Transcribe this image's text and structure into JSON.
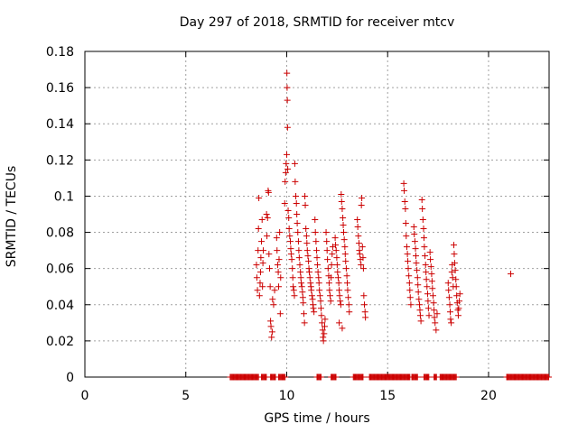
{
  "chart_data": {
    "type": "scatter",
    "title": "Day 297 of 2018, SRMTID for receiver mtcv",
    "xlabel": "GPS time / hours",
    "ylabel": "SRMTID / TECUs",
    "xlim": [
      0,
      23
    ],
    "ylim": [
      0,
      0.18
    ],
    "xticks": [
      0,
      5,
      10,
      15,
      20
    ],
    "yticks": [
      0,
      0.02,
      0.04,
      0.06,
      0.08,
      0.1,
      0.12,
      0.14,
      0.16,
      0.18
    ],
    "xtick_labels": [
      "0",
      "5",
      "10",
      "15",
      "20"
    ],
    "ytick_labels": [
      "0",
      "0.02",
      "0.04",
      "0.06",
      "0.08",
      "0.1",
      "0.12",
      "0.14",
      "0.16",
      "0.18"
    ],
    "grid": true,
    "marker": "+",
    "series": [
      {
        "color": "#cc0000",
        "points": [
          [
            8.5,
            0.062
          ],
          [
            8.52,
            0.055
          ],
          [
            8.55,
            0.048
          ],
          [
            8.58,
            0.07
          ],
          [
            8.6,
            0.082
          ],
          [
            8.62,
            0.099
          ],
          [
            8.65,
            0.045
          ],
          [
            8.68,
            0.052
          ],
          [
            8.7,
            0.058
          ],
          [
            8.72,
            0.066
          ],
          [
            8.75,
            0.075
          ],
          [
            8.78,
            0.087
          ],
          [
            8.8,
            0.05
          ],
          [
            8.82,
            0.063
          ],
          [
            8.84,
            0.07
          ],
          [
            9.0,
            0.09
          ],
          [
            9.02,
            0.078
          ],
          [
            9.05,
            0.088
          ],
          [
            9.08,
            0.103
          ],
          [
            9.1,
            0.102
          ],
          [
            9.12,
            0.068
          ],
          [
            9.15,
            0.06
          ],
          [
            9.18,
            0.05
          ],
          [
            9.2,
            0.031
          ],
          [
            9.22,
            0.028
          ],
          [
            9.25,
            0.022
          ],
          [
            9.28,
            0.025
          ],
          [
            9.3,
            0.043
          ],
          [
            9.35,
            0.04
          ],
          [
            9.4,
            0.048
          ],
          [
            9.5,
            0.077
          ],
          [
            9.52,
            0.07
          ],
          [
            9.55,
            0.062
          ],
          [
            9.58,
            0.058
          ],
          [
            9.6,
            0.05
          ],
          [
            9.62,
            0.065
          ],
          [
            9.65,
            0.08
          ],
          [
            9.68,
            0.035
          ],
          [
            9.7,
            0.055
          ],
          [
            9.9,
            0.096
          ],
          [
            9.92,
            0.108
          ],
          [
            9.95,
            0.113
          ],
          [
            9.97,
            0.118
          ],
          [
            10.0,
            0.123
          ],
          [
            10.01,
            0.168
          ],
          [
            10.02,
            0.16
          ],
          [
            10.03,
            0.153
          ],
          [
            10.04,
            0.138
          ],
          [
            10.05,
            0.115
          ],
          [
            10.07,
            0.092
          ],
          [
            10.1,
            0.088
          ],
          [
            10.12,
            0.082
          ],
          [
            10.15,
            0.078
          ],
          [
            10.18,
            0.075
          ],
          [
            10.2,
            0.071
          ],
          [
            10.22,
            0.068
          ],
          [
            10.25,
            0.065
          ],
          [
            10.28,
            0.06
          ],
          [
            10.3,
            0.055
          ],
          [
            10.32,
            0.05
          ],
          [
            10.35,
            0.048
          ],
          [
            10.38,
            0.045
          ],
          [
            10.4,
            0.118
          ],
          [
            10.42,
            0.108
          ],
          [
            10.45,
            0.1
          ],
          [
            10.48,
            0.096
          ],
          [
            10.5,
            0.09
          ],
          [
            10.52,
            0.085
          ],
          [
            10.55,
            0.08
          ],
          [
            10.58,
            0.075
          ],
          [
            10.6,
            0.07
          ],
          [
            10.62,
            0.066
          ],
          [
            10.65,
            0.062
          ],
          [
            10.68,
            0.058
          ],
          [
            10.7,
            0.055
          ],
          [
            10.72,
            0.052
          ],
          [
            10.75,
            0.05
          ],
          [
            10.78,
            0.047
          ],
          [
            10.8,
            0.044
          ],
          [
            10.82,
            0.041
          ],
          [
            10.85,
            0.035
          ],
          [
            10.88,
            0.03
          ],
          [
            10.9,
            0.1
          ],
          [
            10.92,
            0.095
          ],
          [
            10.95,
            0.082
          ],
          [
            10.98,
            0.078
          ],
          [
            11.0,
            0.074
          ],
          [
            11.02,
            0.07
          ],
          [
            11.05,
            0.067
          ],
          [
            11.08,
            0.064
          ],
          [
            11.1,
            0.06
          ],
          [
            11.12,
            0.058
          ],
          [
            11.15,
            0.055
          ],
          [
            11.18,
            0.052
          ],
          [
            11.2,
            0.05
          ],
          [
            11.22,
            0.048
          ],
          [
            11.25,
            0.045
          ],
          [
            11.28,
            0.043
          ],
          [
            11.3,
            0.04
          ],
          [
            11.32,
            0.038
          ],
          [
            11.35,
            0.036
          ],
          [
            11.4,
            0.087
          ],
          [
            11.42,
            0.08
          ],
          [
            11.45,
            0.075
          ],
          [
            11.48,
            0.07
          ],
          [
            11.5,
            0.066
          ],
          [
            11.52,
            0.062
          ],
          [
            11.55,
            0.058
          ],
          [
            11.58,
            0.055
          ],
          [
            11.6,
            0.052
          ],
          [
            11.62,
            0.048
          ],
          [
            11.65,
            0.045
          ],
          [
            11.68,
            0.042
          ],
          [
            11.7,
            0.038
          ],
          [
            11.72,
            0.034
          ],
          [
            11.75,
            0.03
          ],
          [
            11.78,
            0.026
          ],
          [
            11.8,
            0.022
          ],
          [
            11.82,
            0.02
          ],
          [
            11.85,
            0.024
          ],
          [
            11.88,
            0.028
          ],
          [
            11.9,
            0.032
          ],
          [
            11.95,
            0.08
          ],
          [
            11.98,
            0.075
          ],
          [
            12.0,
            0.07
          ],
          [
            12.02,
            0.065
          ],
          [
            12.05,
            0.06
          ],
          [
            12.08,
            0.056
          ],
          [
            12.1,
            0.052
          ],
          [
            12.12,
            0.048
          ],
          [
            12.15,
            0.045
          ],
          [
            12.18,
            0.042
          ],
          [
            12.2,
            0.055
          ],
          [
            12.22,
            0.062
          ],
          [
            12.25,
            0.068
          ],
          [
            12.28,
            0.072
          ],
          [
            12.4,
            0.077
          ],
          [
            12.42,
            0.073
          ],
          [
            12.45,
            0.07
          ],
          [
            12.48,
            0.066
          ],
          [
            12.5,
            0.062
          ],
          [
            12.52,
            0.058
          ],
          [
            12.55,
            0.055
          ],
          [
            12.58,
            0.052
          ],
          [
            12.6,
            0.048
          ],
          [
            12.62,
            0.045
          ],
          [
            12.65,
            0.042
          ],
          [
            12.68,
            0.04
          ],
          [
            12.7,
            0.101
          ],
          [
            12.72,
            0.097
          ],
          [
            12.75,
            0.093
          ],
          [
            12.78,
            0.088
          ],
          [
            12.8,
            0.084
          ],
          [
            12.82,
            0.08
          ],
          [
            12.85,
            0.076
          ],
          [
            12.88,
            0.072
          ],
          [
            12.9,
            0.068
          ],
          [
            12.92,
            0.064
          ],
          [
            12.95,
            0.06
          ],
          [
            12.98,
            0.056
          ],
          [
            13.0,
            0.052
          ],
          [
            13.02,
            0.048
          ],
          [
            13.05,
            0.044
          ],
          [
            13.08,
            0.04
          ],
          [
            13.1,
            0.036
          ],
          [
            12.75,
            0.027
          ],
          [
            12.6,
            0.03
          ],
          [
            13.5,
            0.087
          ],
          [
            13.52,
            0.083
          ],
          [
            13.55,
            0.078
          ],
          [
            13.58,
            0.074
          ],
          [
            13.6,
            0.07
          ],
          [
            13.62,
            0.068
          ],
          [
            13.65,
            0.065
          ],
          [
            13.68,
            0.062
          ],
          [
            13.7,
            0.095
          ],
          [
            13.72,
            0.099
          ],
          [
            13.75,
            0.072
          ],
          [
            13.78,
            0.066
          ],
          [
            13.8,
            0.06
          ],
          [
            13.82,
            0.045
          ],
          [
            13.85,
            0.04
          ],
          [
            13.88,
            0.036
          ],
          [
            13.9,
            0.033
          ],
          [
            15.8,
            0.107
          ],
          [
            15.82,
            0.103
          ],
          [
            15.85,
            0.097
          ],
          [
            15.88,
            0.093
          ],
          [
            15.9,
            0.085
          ],
          [
            15.92,
            0.078
          ],
          [
            15.95,
            0.072
          ],
          [
            15.98,
            0.068
          ],
          [
            16.0,
            0.064
          ],
          [
            16.02,
            0.06
          ],
          [
            16.05,
            0.056
          ],
          [
            16.08,
            0.052
          ],
          [
            16.1,
            0.048
          ],
          [
            16.12,
            0.044
          ],
          [
            16.15,
            0.04
          ],
          [
            16.3,
            0.083
          ],
          [
            16.32,
            0.079
          ],
          [
            16.35,
            0.075
          ],
          [
            16.38,
            0.071
          ],
          [
            16.4,
            0.067
          ],
          [
            16.42,
            0.063
          ],
          [
            16.45,
            0.059
          ],
          [
            16.48,
            0.055
          ],
          [
            16.5,
            0.051
          ],
          [
            16.52,
            0.047
          ],
          [
            16.55,
            0.043
          ],
          [
            16.58,
            0.04
          ],
          [
            16.6,
            0.037
          ],
          [
            16.62,
            0.034
          ],
          [
            16.65,
            0.031
          ],
          [
            16.7,
            0.098
          ],
          [
            16.72,
            0.093
          ],
          [
            16.75,
            0.087
          ],
          [
            16.78,
            0.082
          ],
          [
            16.8,
            0.077
          ],
          [
            16.82,
            0.072
          ],
          [
            16.85,
            0.067
          ],
          [
            16.88,
            0.062
          ],
          [
            16.9,
            0.058
          ],
          [
            16.92,
            0.054
          ],
          [
            16.95,
            0.05
          ],
          [
            16.98,
            0.046
          ],
          [
            17.0,
            0.042
          ],
          [
            17.02,
            0.038
          ],
          [
            17.05,
            0.034
          ],
          [
            17.1,
            0.069
          ],
          [
            17.12,
            0.065
          ],
          [
            17.15,
            0.061
          ],
          [
            17.18,
            0.057
          ],
          [
            17.2,
            0.053
          ],
          [
            17.22,
            0.049
          ],
          [
            17.25,
            0.045
          ],
          [
            17.28,
            0.041
          ],
          [
            17.3,
            0.037
          ],
          [
            17.32,
            0.033
          ],
          [
            17.35,
            0.03
          ],
          [
            17.4,
            0.026
          ],
          [
            17.45,
            0.035
          ],
          [
            18.0,
            0.052
          ],
          [
            18.02,
            0.048
          ],
          [
            18.05,
            0.044
          ],
          [
            18.08,
            0.04
          ],
          [
            18.1,
            0.036
          ],
          [
            18.12,
            0.032
          ],
          [
            18.15,
            0.03
          ],
          [
            18.18,
            0.058
          ],
          [
            18.2,
            0.062
          ],
          [
            18.22,
            0.055
          ],
          [
            18.25,
            0.05
          ],
          [
            18.28,
            0.073
          ],
          [
            18.3,
            0.068
          ],
          [
            18.32,
            0.063
          ],
          [
            18.35,
            0.059
          ],
          [
            18.38,
            0.054
          ],
          [
            18.4,
            0.05
          ],
          [
            18.42,
            0.045
          ],
          [
            18.45,
            0.041
          ],
          [
            18.48,
            0.037
          ],
          [
            18.5,
            0.034
          ],
          [
            18.52,
            0.038
          ],
          [
            18.55,
            0.042
          ],
          [
            18.58,
            0.046
          ],
          [
            21.1,
            0.057
          ]
        ]
      }
    ],
    "zero_segments": [
      [
        7.2,
        8.6
      ],
      [
        8.75,
        9.0
      ],
      [
        9.2,
        9.45
      ],
      [
        9.6,
        9.95
      ],
      [
        11.5,
        11.7
      ],
      [
        12.2,
        12.45
      ],
      [
        13.3,
        13.8
      ],
      [
        14.1,
        16.1
      ],
      [
        16.2,
        16.5
      ],
      [
        16.8,
        17.05
      ],
      [
        17.3,
        17.45
      ],
      [
        17.6,
        18.4
      ],
      [
        20.9,
        23.0
      ]
    ]
  }
}
